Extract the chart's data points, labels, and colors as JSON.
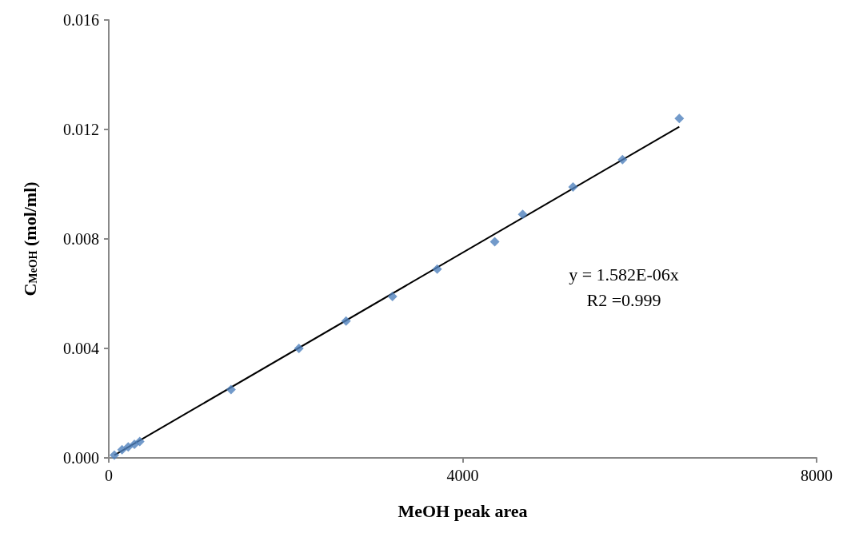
{
  "chart_data": {
    "type": "scatter",
    "xlabel": "MeOH peak area",
    "ylabel": "C$_{MeOH}$ (mol/ml)",
    "marker": "diamond",
    "grid": false,
    "xlim": [
      0,
      8000
    ],
    "xticks": [
      0,
      4000,
      8000
    ],
    "ylim": [
      0,
      0.016
    ],
    "yticks": [
      {
        "value": 0,
        "label": "0.000"
      },
      {
        "value": 0.004,
        "label": "0.004"
      },
      {
        "value": 0.008,
        "label": "0.008"
      },
      {
        "value": 0.012,
        "label": "0.012"
      },
      {
        "value": 0.016,
        "label": "0.016"
      }
    ],
    "series": [
      {
        "color": "#4f81bd",
        "x": [
          63,
          150,
          220,
          290,
          350,
          1382,
          2149,
          2682,
          3206,
          3712,
          4362,
          4678,
          5247,
          5806,
          6448
        ],
        "values": [
          0.0001,
          0.0003,
          0.0004,
          0.0005,
          0.0006,
          0.0025,
          0.004,
          0.005,
          0.0059,
          0.0069,
          0.0079,
          0.0089,
          0.0099,
          0.0109,
          0.0124
        ]
      },
      {
        "type": "line",
        "color": "#000000",
        "marker": "none",
        "x": [
          63,
          6448
        ],
        "values": [
          0.0001,
          0.0121
        ]
      }
    ],
    "annotations": [
      "y = 1.582E-06x",
      "R2 =0.999"
    ]
  }
}
